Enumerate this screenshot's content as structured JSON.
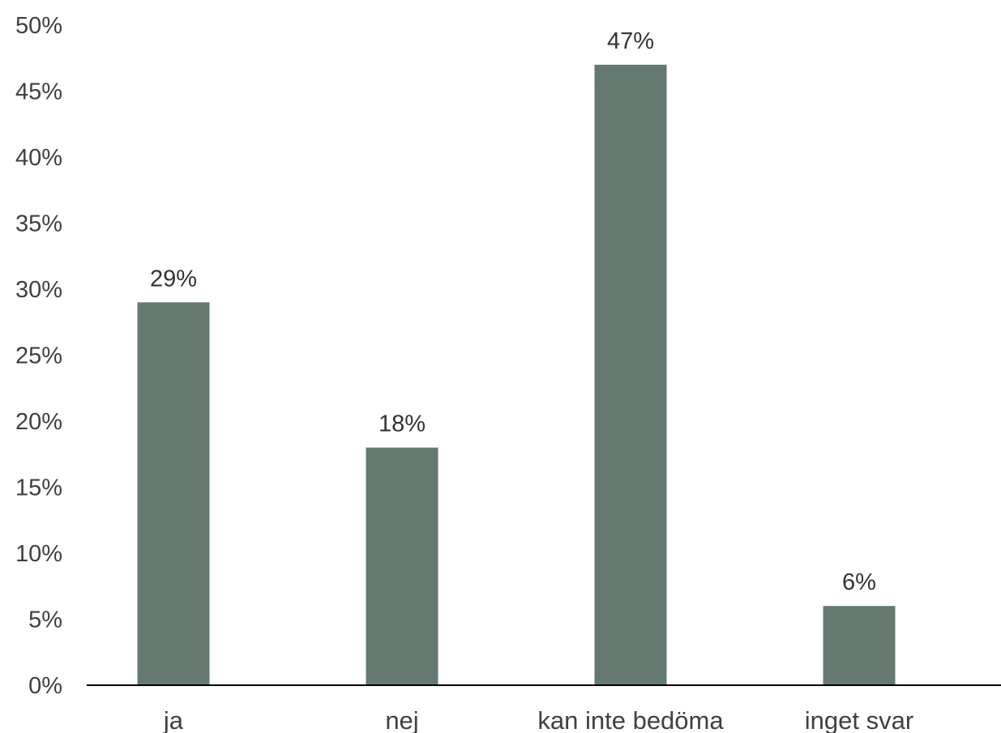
{
  "chart_data": {
    "type": "bar",
    "categories": [
      "ja",
      "nej",
      "kan inte bedöma",
      "inget svar"
    ],
    "values": [
      29,
      18,
      47,
      6
    ],
    "value_labels": [
      "29%",
      "18%",
      "47%",
      "6%"
    ],
    "y_ticks": [
      0,
      5,
      10,
      15,
      20,
      25,
      30,
      35,
      40,
      45,
      50
    ],
    "y_tick_labels": [
      "0%",
      "5%",
      "10%",
      "15%",
      "20%",
      "25%",
      "30%",
      "35%",
      "40%",
      "45%",
      "50%"
    ],
    "ylim": [
      0,
      50
    ],
    "grid": false,
    "legend": "none",
    "bar_color": "#647a70",
    "axis_color": "#000000",
    "text_color": "#404040"
  }
}
